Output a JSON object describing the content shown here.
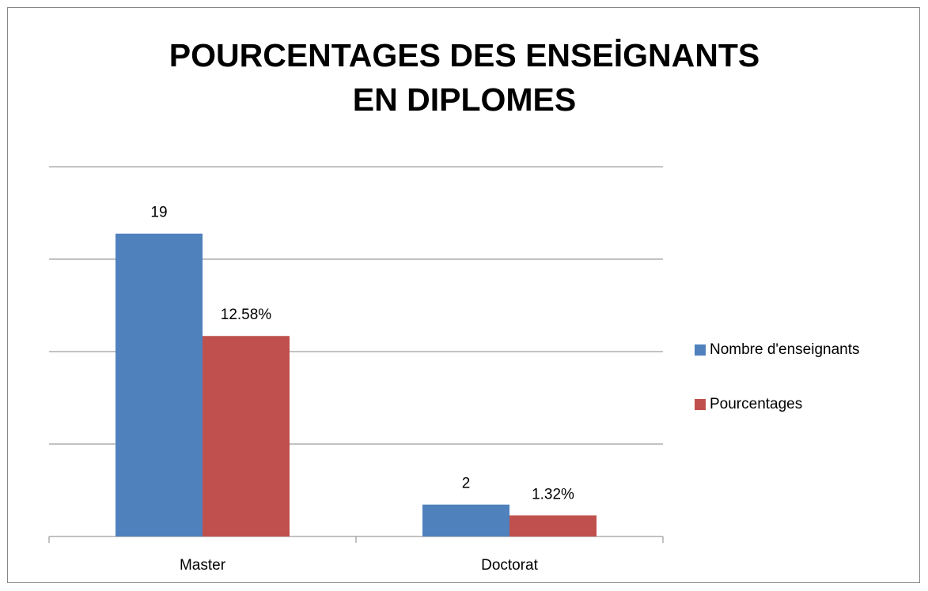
{
  "chart_data": {
    "type": "bar",
    "title": "POURCENTAGES DES ENSEİGNANTS EN DIPLOMES",
    "categories": [
      "Master",
      "Doctorat"
    ],
    "series": [
      {
        "name": "Nombre d'enseignants",
        "color": "#4f81bd",
        "values": [
          19,
          2
        ]
      },
      {
        "name": "Pourcentages",
        "color": "#c0504d",
        "values": [
          12.58,
          1.32
        ],
        "value_labels": [
          "12.58%",
          "1.32%"
        ]
      }
    ],
    "ylim": [
      0,
      23.2
    ],
    "grid": true,
    "legend": "right"
  }
}
